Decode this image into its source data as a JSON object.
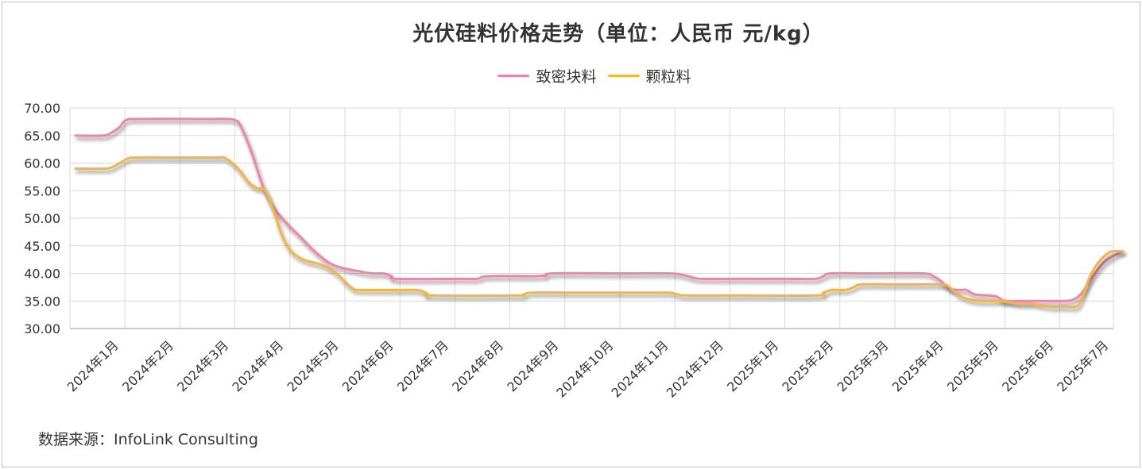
{
  "title": "光伏硅料价格走势（单位：人民币 元/kg）",
  "source": "数据来源：InfoLink Consulting",
  "colors": {
    "dense": "#ee85a8",
    "granular": "#f5b53a",
    "grid": "#d9d9d9",
    "axis": "#999999"
  },
  "chart_data": {
    "type": "line",
    "title": "光伏硅料价格走势（单位：人民币 元/kg）",
    "xlabel": "",
    "ylabel": "",
    "ylim": [
      30,
      70
    ],
    "yticks": [
      "70.00",
      "65.00",
      "60.00",
      "55.00",
      "50.00",
      "45.00",
      "40.00",
      "35.00",
      "30.00"
    ],
    "categories": [
      "2024年1月",
      "2024年2月",
      "2024年3月",
      "2024年4月",
      "2024年5月",
      "2024年6月",
      "2024年7月",
      "2024年8月",
      "2024年9月",
      "2024年10月",
      "2024年11月",
      "2024年12月",
      "2025年1月",
      "2025年2月",
      "2025年3月",
      "2025年4月",
      "2025年5月",
      "2025年6月",
      "2025年7月"
    ],
    "legend": "top-center",
    "grid": true,
    "series": [
      {
        "name": "致密块料",
        "points": [
          [
            0,
            65
          ],
          [
            0.5,
            65
          ],
          [
            0.65,
            65.5
          ],
          [
            0.8,
            66.5
          ],
          [
            0.92,
            67.8
          ],
          [
            1.2,
            68
          ],
          [
            2.5,
            68
          ],
          [
            2.75,
            68
          ],
          [
            2.9,
            67.8
          ],
          [
            3.0,
            66.8
          ],
          [
            3.2,
            62
          ],
          [
            3.4,
            56
          ],
          [
            3.6,
            52
          ],
          [
            3.85,
            49
          ],
          [
            4.1,
            46.5
          ],
          [
            4.35,
            44
          ],
          [
            4.6,
            42
          ],
          [
            4.85,
            41
          ],
          [
            5.2,
            40.3
          ],
          [
            5.4,
            40
          ],
          [
            5.6,
            40
          ],
          [
            5.75,
            39.5
          ],
          [
            5.85,
            39
          ],
          [
            7.0,
            39
          ],
          [
            7.3,
            39
          ],
          [
            7.5,
            39.5
          ],
          [
            8.3,
            39.5
          ],
          [
            8.55,
            39.6
          ],
          [
            8.7,
            40
          ],
          [
            10.0,
            40
          ],
          [
            10.8,
            40
          ],
          [
            11.05,
            39.7
          ],
          [
            11.25,
            39.2
          ],
          [
            11.4,
            39
          ],
          [
            12.0,
            39
          ],
          [
            13.0,
            39
          ],
          [
            13.45,
            39
          ],
          [
            13.6,
            39.5
          ],
          [
            13.75,
            40
          ],
          [
            14.5,
            40
          ],
          [
            15.4,
            40
          ],
          [
            15.6,
            39.5
          ],
          [
            15.75,
            38.5
          ],
          [
            15.9,
            37.2
          ],
          [
            16.1,
            37
          ],
          [
            16.2,
            37
          ],
          [
            16.35,
            36.2
          ],
          [
            16.6,
            36
          ],
          [
            16.75,
            35.8
          ],
          [
            16.85,
            35.2
          ],
          [
            16.95,
            35
          ],
          [
            17.5,
            35
          ],
          [
            18.0,
            35
          ],
          [
            18.15,
            35.3
          ],
          [
            18.3,
            36.5
          ],
          [
            18.5,
            39.5
          ],
          [
            18.7,
            42
          ],
          [
            18.9,
            43.3
          ],
          [
            19.05,
            44
          ]
        ]
      },
      {
        "name": "颗粒料",
        "points": [
          [
            0,
            59
          ],
          [
            0.5,
            59
          ],
          [
            0.65,
            59.2
          ],
          [
            0.8,
            60
          ],
          [
            0.95,
            60.8
          ],
          [
            1.1,
            61
          ],
          [
            2.0,
            61
          ],
          [
            2.6,
            61
          ],
          [
            2.7,
            61
          ],
          [
            2.85,
            60
          ],
          [
            3.0,
            58.5
          ],
          [
            3.15,
            56.5
          ],
          [
            3.3,
            55.5
          ],
          [
            3.45,
            55
          ],
          [
            3.6,
            51.5
          ],
          [
            3.75,
            47
          ],
          [
            3.9,
            44.3
          ],
          [
            4.05,
            43
          ],
          [
            4.2,
            42.3
          ],
          [
            4.4,
            41.8
          ],
          [
            4.6,
            41
          ],
          [
            4.75,
            40
          ],
          [
            4.9,
            38.5
          ],
          [
            5.05,
            37.2
          ],
          [
            5.2,
            37
          ],
          [
            6.0,
            37
          ],
          [
            6.2,
            37
          ],
          [
            6.3,
            36.8
          ],
          [
            6.4,
            36.3
          ],
          [
            6.5,
            36
          ],
          [
            8.0,
            36
          ],
          [
            8.15,
            36.2
          ],
          [
            8.3,
            36.5
          ],
          [
            9.0,
            36.5
          ],
          [
            10.5,
            36.5
          ],
          [
            10.8,
            36.5
          ],
          [
            10.95,
            36.2
          ],
          [
            11.1,
            36
          ],
          [
            12.0,
            36
          ],
          [
            13.45,
            36
          ],
          [
            13.6,
            36.5
          ],
          [
            13.75,
            37
          ],
          [
            14.0,
            37
          ],
          [
            14.15,
            37.5
          ],
          [
            14.3,
            38
          ],
          [
            15.0,
            38
          ],
          [
            15.7,
            38
          ],
          [
            15.85,
            37.8
          ],
          [
            15.95,
            37
          ],
          [
            16.1,
            35.8
          ],
          [
            16.3,
            35.2
          ],
          [
            16.5,
            35
          ],
          [
            16.8,
            35
          ],
          [
            17.0,
            34.8
          ],
          [
            17.15,
            34.5
          ],
          [
            17.4,
            34.5
          ],
          [
            17.7,
            34
          ],
          [
            18.0,
            34
          ],
          [
            18.2,
            34
          ],
          [
            18.3,
            35.5
          ],
          [
            18.45,
            39.5
          ],
          [
            18.6,
            42
          ],
          [
            18.75,
            43.5
          ],
          [
            18.85,
            44
          ],
          [
            19.05,
            44
          ]
        ]
      }
    ]
  }
}
